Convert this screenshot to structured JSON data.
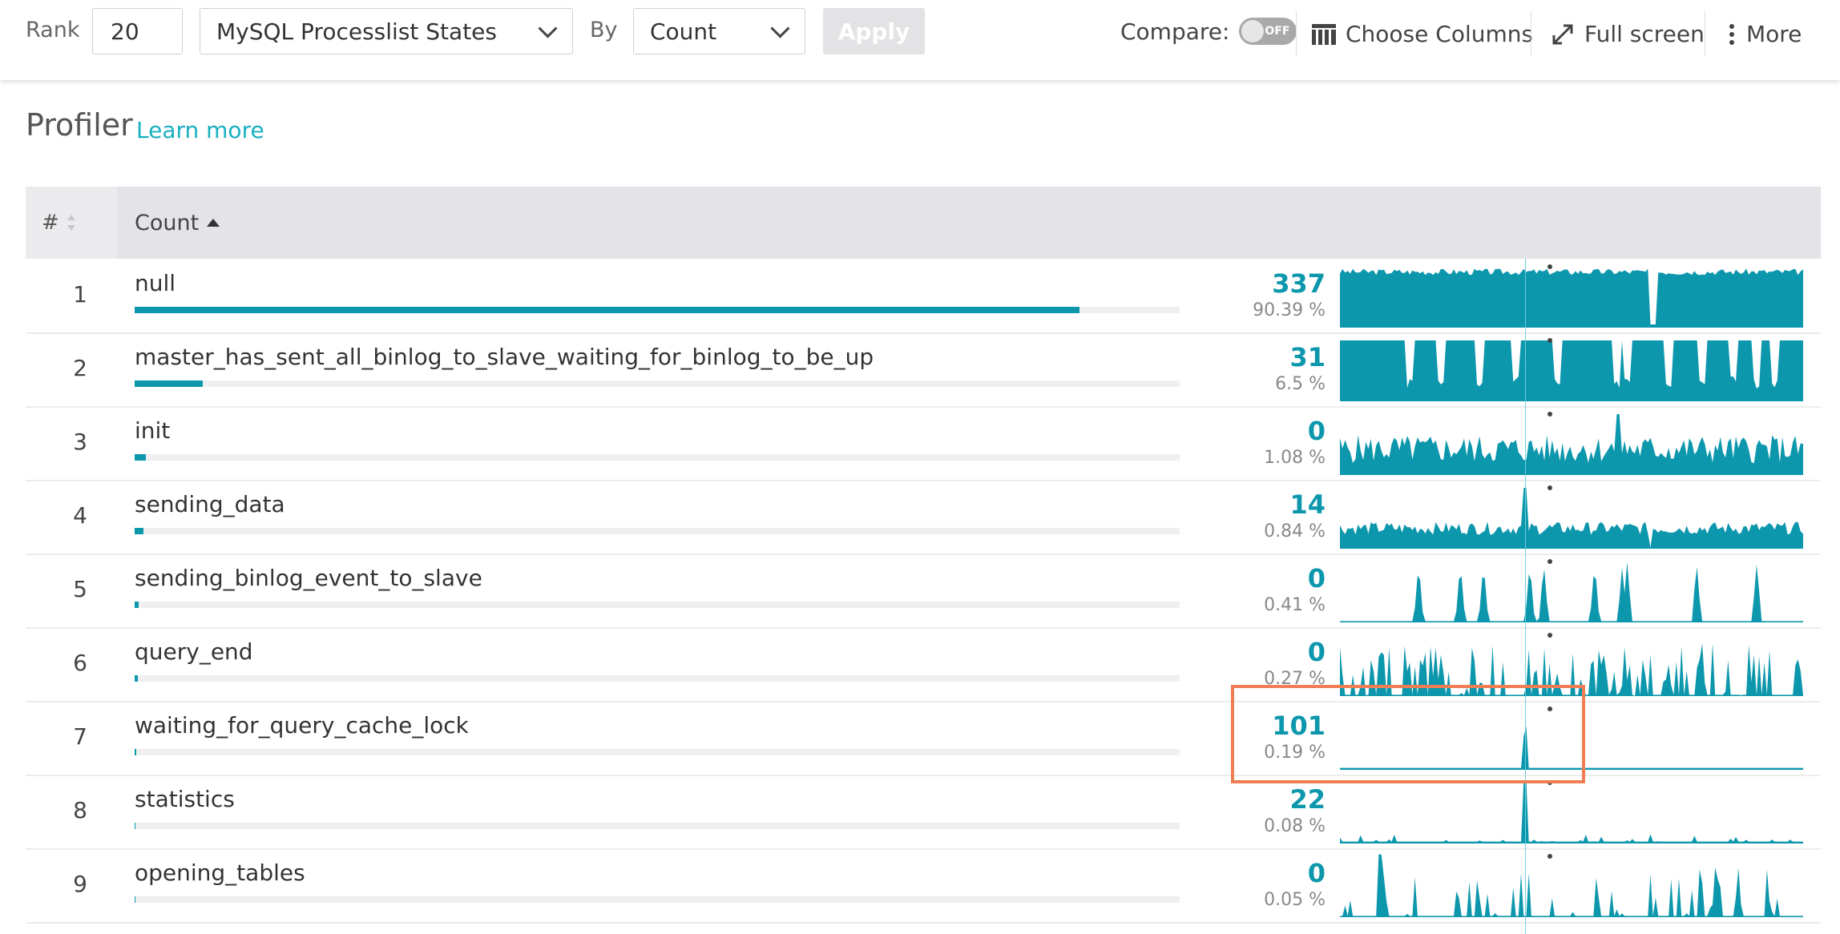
{
  "toolbar": {
    "rank_label": "Rank",
    "rank_value": "20",
    "metric_select": "MySQL Processlist States",
    "by_label": "By",
    "by_select": "Count",
    "apply_label": "Apply",
    "compare_label": "Compare:",
    "compare_toggle": "OFF",
    "choose_columns_label": "Choose Columns",
    "full_screen_label": "Full screen",
    "more_label": "More"
  },
  "profiler": {
    "title": "Profiler",
    "learn_more": "Learn more"
  },
  "table": {
    "col_hash": "#",
    "col_count": "Count",
    "rows": [
      {
        "rank": "1",
        "name": "null",
        "value": "337",
        "percent": "90.39 %",
        "share": 0.9039,
        "spark": "dense"
      },
      {
        "rank": "2",
        "name": "master_has_sent_all_binlog_to_slave_waiting_for_binlog_to_be_up",
        "value": "31",
        "percent": "6.5 %",
        "share": 0.065,
        "spark": "blocky"
      },
      {
        "rank": "3",
        "name": "init",
        "value": "0",
        "percent": "1.08 %",
        "share": 0.0108,
        "spark": "noisy"
      },
      {
        "rank": "4",
        "name": "sending_data",
        "value": "14",
        "percent": "0.84 %",
        "share": 0.0084,
        "spark": "lowband"
      },
      {
        "rank": "5",
        "name": "sending_binlog_event_to_slave",
        "value": "0",
        "percent": "0.41 %",
        "share": 0.0041,
        "spark": "spikes"
      },
      {
        "rank": "6",
        "name": "query_end",
        "value": "0",
        "percent": "0.27 %",
        "share": 0.0027,
        "spark": "noisy2"
      },
      {
        "rank": "7",
        "name": "waiting_for_query_cache_lock",
        "value": "101",
        "percent": "0.19 %",
        "share": 0.0019,
        "spark": "single"
      },
      {
        "rank": "8",
        "name": "statistics",
        "value": "22",
        "percent": "0.08 %",
        "share": 0.0008,
        "spark": "flatspike"
      },
      {
        "rank": "9",
        "name": "opening_tables",
        "value": "0",
        "percent": "0.05 %",
        "share": 0.0005,
        "spark": "sparse"
      }
    ]
  },
  "colors": {
    "accent": "#0d97ad",
    "link": "#1aafc0",
    "highlight": "#f07e54"
  }
}
